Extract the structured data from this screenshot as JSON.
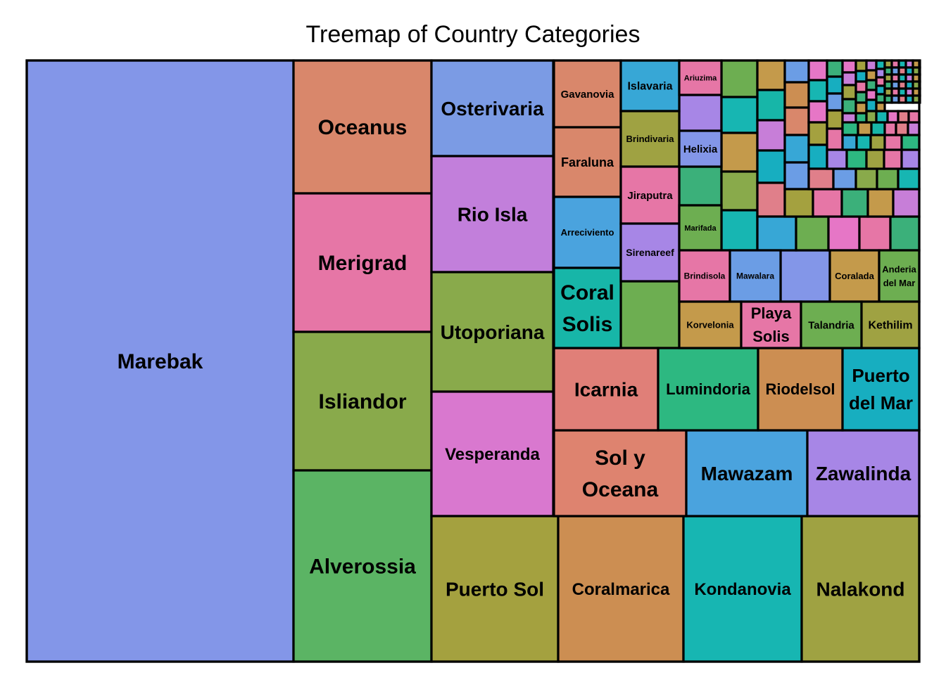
{
  "chart_data": {
    "type": "treemap",
    "title": "Treemap of Country Categories",
    "tiles": [
      {
        "label": "Marebak",
        "color": "#8396E8"
      },
      {
        "label": "Oceanus",
        "color": "#D9876B"
      },
      {
        "label": "Merigrad",
        "color": "#E676A6"
      },
      {
        "label": "Isliandor",
        "color": "#89AA4B"
      },
      {
        "label": "Alverossia",
        "color": "#5BB464"
      },
      {
        "label": "Osterivaria",
        "color": "#7B9BE4"
      },
      {
        "label": "Rio Isla",
        "color": "#C27FDB"
      },
      {
        "label": "Utoporiana",
        "color": "#89AA4B"
      },
      {
        "label": "Vesperanda",
        "color": "#D978CF"
      },
      {
        "label": "Puerto Sol",
        "color": "#A4A13F"
      },
      {
        "label": "Coralmarica",
        "color": "#CC8E52"
      },
      {
        "label": "Kondanovia",
        "color": "#17B6B2"
      },
      {
        "label": "Nalakond",
        "color": "#9FA242"
      },
      {
        "label": "Sol y Oceana",
        "color": "#DE836F"
      },
      {
        "label": "Mawazam",
        "color": "#4AA3DE"
      },
      {
        "label": "Zawalinda",
        "color": "#A786E6"
      },
      {
        "label": "Icarnia",
        "color": "#E07F78"
      },
      {
        "label": "Lumindoria",
        "color": "#2DB881"
      },
      {
        "label": "Riodelsol",
        "color": "#CC8E52"
      },
      {
        "label": "Puerto del Mar",
        "color": "#17AEC0"
      },
      {
        "label": "Gavanovia",
        "color": "#D9876B"
      },
      {
        "label": "Faraluna",
        "color": "#D9876B"
      },
      {
        "label": "Arreciviento",
        "color": "#4AA3DE"
      },
      {
        "label": "Coral Solis",
        "color": "#17B6A8"
      },
      {
        "label": "Islavaria",
        "color": "#37A7D6"
      },
      {
        "label": "Brindivaria",
        "color": "#9FA242"
      },
      {
        "label": "Jiraputra",
        "color": "#E676A6"
      },
      {
        "label": "Sirenareef",
        "color": "#A786E6"
      },
      {
        "label": "Ariuzima",
        "color": "#E676A6"
      },
      {
        "label": "Helixia",
        "color": "#8396E8"
      },
      {
        "label": "Marifada",
        "color": "#6DAE51"
      },
      {
        "label": "Brindisola",
        "color": "#E676A6"
      },
      {
        "label": "Mawalara",
        "color": "#6B9DE5"
      },
      {
        "label": "Coralada",
        "color": "#C49A4B"
      },
      {
        "label": "Anderia del Mar",
        "color": "#6DAE51"
      },
      {
        "label": "Korvelonia",
        "color": "#C49A4B"
      },
      {
        "label": "Playa Solis",
        "color": "#E676A6"
      },
      {
        "label": "Talandria",
        "color": "#6DAE51"
      },
      {
        "label": "Kethilim",
        "color": "#9FA242"
      }
    ]
  }
}
